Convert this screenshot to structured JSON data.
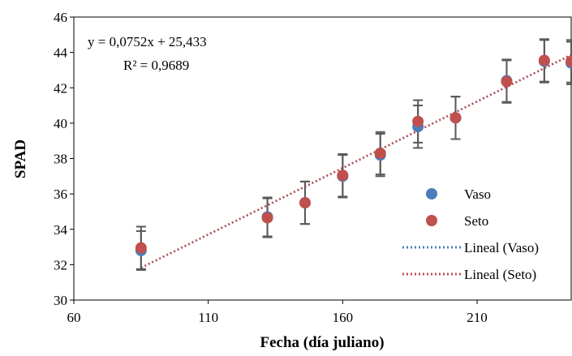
{
  "chart_data": {
    "type": "scatter",
    "xlabel": "Fecha (día juliano)",
    "ylabel": "SPAD",
    "xlim": [
      60,
      245
    ],
    "ylim": [
      30,
      46
    ],
    "xticks": [
      60,
      110,
      160,
      210
    ],
    "yticks": [
      30,
      32,
      34,
      36,
      38,
      40,
      42,
      44,
      46
    ],
    "grid": false,
    "legend_position": "bottom-right",
    "equation": "y = 0,0752x + 25,433",
    "r_squared": "R² = 0,9689",
    "series": [
      {
        "name": "Vaso",
        "color": "#4a7ebb",
        "points": [
          {
            "x": 85,
            "y": 32.8,
            "err": 1.1
          },
          {
            "x": 132,
            "y": 34.7,
            "err": 1.1
          },
          {
            "x": 146,
            "y": 35.5,
            "err": 1.2
          },
          {
            "x": 160,
            "y": 37.0,
            "err": 1.2
          },
          {
            "x": 174,
            "y": 38.2,
            "err": 1.2
          },
          {
            "x": 188,
            "y": 39.8,
            "err": 1.2
          },
          {
            "x": 202,
            "y": 40.3,
            "err": 1.2
          },
          {
            "x": 221,
            "y": 42.4,
            "err": 1.2
          },
          {
            "x": 235,
            "y": 43.5,
            "err": 1.2
          },
          {
            "x": 245,
            "y": 43.4,
            "err": 1.2
          }
        ]
      },
      {
        "name": "Seto",
        "color": "#c0504d",
        "points": [
          {
            "x": 85,
            "y": 32.95,
            "err": 1.2
          },
          {
            "x": 132,
            "y": 34.65,
            "err": 1.1
          },
          {
            "x": 146,
            "y": 35.5,
            "err": 1.2
          },
          {
            "x": 160,
            "y": 37.05,
            "err": 1.2
          },
          {
            "x": 174,
            "y": 38.3,
            "err": 1.2
          },
          {
            "x": 188,
            "y": 40.1,
            "err": 1.2
          },
          {
            "x": 202,
            "y": 40.3,
            "err": 1.2
          },
          {
            "x": 221,
            "y": 42.35,
            "err": 1.2
          },
          {
            "x": 235,
            "y": 43.55,
            "err": 1.2
          },
          {
            "x": 245,
            "y": 43.5,
            "err": 1.2
          }
        ]
      }
    ],
    "trendlines": [
      {
        "name": "Lineal (Vaso)",
        "color": "#4a7ebb",
        "slope": 0.0752,
        "intercept": 25.433,
        "x_from": 85,
        "x_to": 245
      },
      {
        "name": "Lineal (Seto)",
        "color": "#c0504d",
        "slope": 0.0752,
        "intercept": 25.433,
        "x_from": 85,
        "x_to": 245
      }
    ],
    "error_bar_color": "#595959"
  }
}
